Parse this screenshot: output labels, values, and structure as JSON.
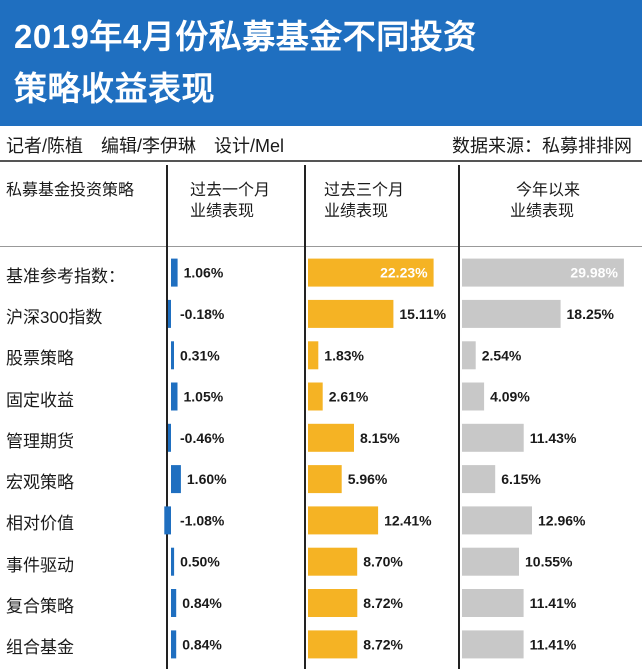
{
  "header": {
    "title_line1": "2019年4月份私募基金不同投资",
    "title_line2": "策略收益表现"
  },
  "credits": {
    "left": "记者/陈植　编辑/李伊琳　设计/Mel",
    "right": "数据来源：私募排排网"
  },
  "columns": {
    "strategy": "私募基金投资策略",
    "one_month_l1": "过去一个月",
    "one_month_l2": "业绩表现",
    "three_month_l1": "过去三个月",
    "three_month_l2": "业绩表现",
    "ytd_l1": "今年以来",
    "ytd_l2": "业绩表现"
  },
  "colors": {
    "header_bg": "#1f6fc0",
    "one_month": "#1f6fc0",
    "three_month": "#f5b324",
    "ytd": "#c8c8c8"
  },
  "chart_data": {
    "type": "bar",
    "title": "2019年4月份私募基金不同投资策略收益表现",
    "unit": "%",
    "categories": [
      "基准参考指数：",
      "沪深300指数",
      "股票策略",
      "固定收益",
      "管理期货",
      "宏观策略",
      "相对价值",
      "事件驱动",
      "复合策略",
      "组合基金"
    ],
    "series": [
      {
        "name": "过去一个月业绩表现",
        "values": [
          1.06,
          -0.18,
          0.31,
          1.05,
          -0.46,
          1.6,
          -1.08,
          0.5,
          0.84,
          0.84
        ],
        "labels": [
          "1.06%",
          "-0.18%",
          "0.31%",
          "1.05%",
          "-0.46%",
          "1.60%",
          "-1.08%",
          "0.50%",
          "0.84%",
          "0.84%"
        ]
      },
      {
        "name": "过去三个月业绩表现",
        "values": [
          22.23,
          15.11,
          1.83,
          2.61,
          8.15,
          5.96,
          12.41,
          8.7,
          8.72,
          8.72
        ],
        "labels": [
          "22.23%",
          "15.11%",
          "1.83%",
          "2.61%",
          "8.15%",
          "5.96%",
          "12.41%",
          "8.70%",
          "8.72%",
          "8.72%"
        ]
      },
      {
        "name": "今年以来业绩表现",
        "values": [
          29.98,
          18.25,
          2.54,
          4.09,
          11.43,
          6.15,
          12.96,
          10.55,
          11.41,
          11.41
        ],
        "labels": [
          "29.98%",
          "18.25%",
          "2.54%",
          "4.09%",
          "11.43%",
          "6.15%",
          "12.96%",
          "10.55%",
          "11.41%",
          "11.41%"
        ]
      }
    ]
  }
}
